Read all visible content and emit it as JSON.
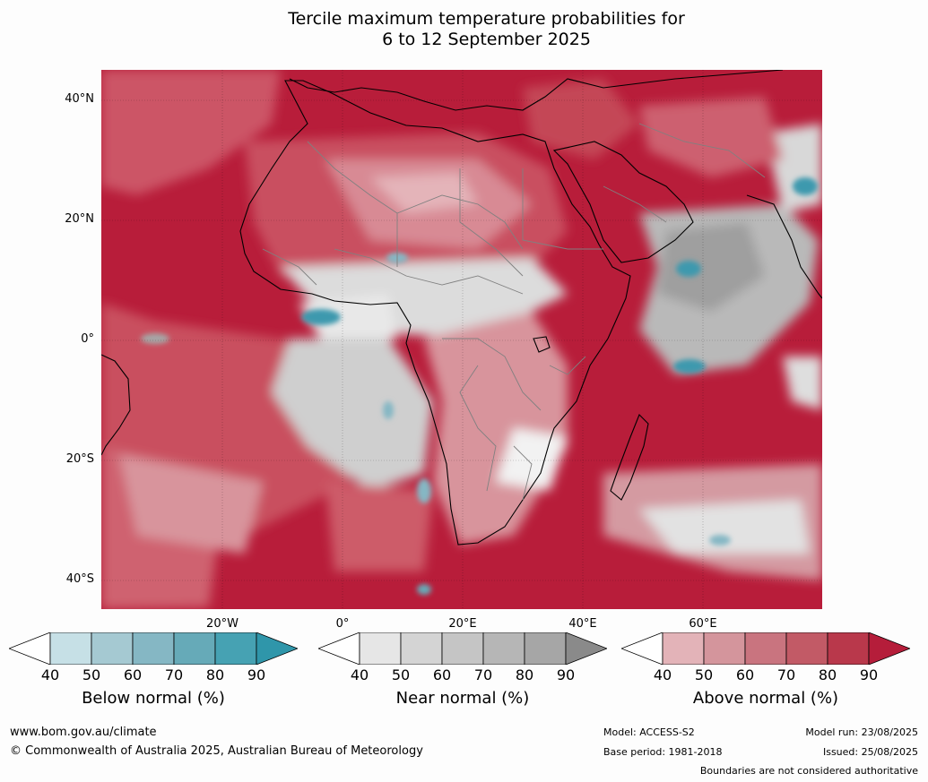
{
  "title": {
    "line1": "Tercile maximum temperature probabilities for",
    "line2": "6 to 12 September 2025"
  },
  "map": {
    "lat_labels": [
      "40°N",
      "20°N",
      "0°",
      "20°S",
      "40°S"
    ],
    "lon_labels": [
      "20°W",
      "0°",
      "20°E",
      "40°E",
      "60°E"
    ],
    "palette": {
      "ocean_above": "#b81d3a",
      "land_above": "#c94f60",
      "light_above": "#d88a94",
      "near_normal": "#c9c9c9",
      "below_normal": "#3d99ae",
      "coast": "#000000",
      "border": "#808080"
    }
  },
  "colorbars": [
    {
      "label": "Below normal (%)",
      "ticks": [
        "40",
        "50",
        "60",
        "70",
        "80",
        "90"
      ],
      "colors": [
        "#ffffff",
        "#c6e0e6",
        "#a5c9d2",
        "#85b7c4",
        "#66aab8",
        "#46a2b3",
        "#2f96aa"
      ]
    },
    {
      "label": "Near normal (%)",
      "ticks": [
        "40",
        "50",
        "60",
        "70",
        "80",
        "90"
      ],
      "colors": [
        "#ffffff",
        "#e6e6e6",
        "#d4d4d4",
        "#c5c5c5",
        "#b6b6b6",
        "#a6a6a6",
        "#8a8a8a"
      ]
    },
    {
      "label": "Above normal (%)",
      "ticks": [
        "40",
        "50",
        "60",
        "70",
        "80",
        "90"
      ],
      "colors": [
        "#ffffff",
        "#e3b3b8",
        "#d4959c",
        "#c9747f",
        "#c25a66",
        "#b9384b",
        "#b51d3a"
      ]
    }
  ],
  "footer": {
    "url": "www.bom.gov.au/climate",
    "copyright": "© Commonwealth of Australia 2025, Australian Bureau of Meteorology",
    "model": "Model: ACCESS-S2",
    "base_period": "Base period: 1981-2018",
    "model_run": "Model run: 23/08/2025",
    "issued": "Issued: 25/08/2025",
    "disclaimer": "Boundaries are not considered authoritative"
  }
}
